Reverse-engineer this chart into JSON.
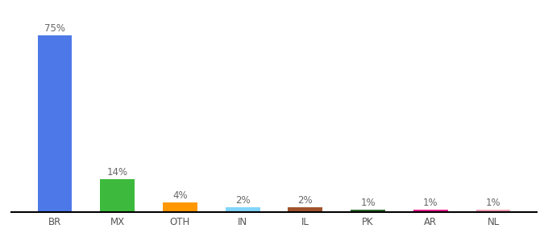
{
  "categories": [
    "BR",
    "MX",
    "OTH",
    "IN",
    "IL",
    "PK",
    "AR",
    "NL"
  ],
  "values": [
    75,
    14,
    4,
    2,
    2,
    1,
    1,
    1
  ],
  "bar_colors": [
    "#4d79e8",
    "#3dba3d",
    "#ff9800",
    "#81d4fa",
    "#a0522d",
    "#2e6b2e",
    "#e91e8c",
    "#f4a0b5"
  ],
  "labels": [
    "75%",
    "14%",
    "4%",
    "2%",
    "2%",
    "1%",
    "1%",
    "1%"
  ],
  "background_color": "#ffffff",
  "label_fontsize": 8.5,
  "tick_fontsize": 8.5,
  "bar_width": 0.55,
  "ylim": [
    0,
    85
  ],
  "figsize": [
    6.8,
    3.0
  ],
  "dpi": 100
}
